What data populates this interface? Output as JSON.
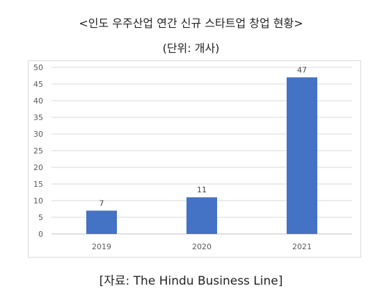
{
  "header": {
    "title": "<인도 우주산업 연간 신규 스타트업 창업 현황>",
    "unit": "(단위: 개사)"
  },
  "source": "[자료: The Hindu Business Line]",
  "colors": {
    "bar": "#4472c4",
    "grid": "#d9d9d9",
    "axis": "#595959"
  },
  "chart_data": {
    "type": "bar",
    "categories": [
      "2019",
      "2020",
      "2021"
    ],
    "values": [
      7,
      11,
      47
    ],
    "ylim": [
      0,
      50
    ],
    "yticks": [
      0,
      5,
      10,
      15,
      20,
      25,
      30,
      35,
      40,
      45,
      50
    ],
    "data_labels": [
      "7",
      "11",
      "47"
    ],
    "grid": true,
    "legend": "none"
  }
}
